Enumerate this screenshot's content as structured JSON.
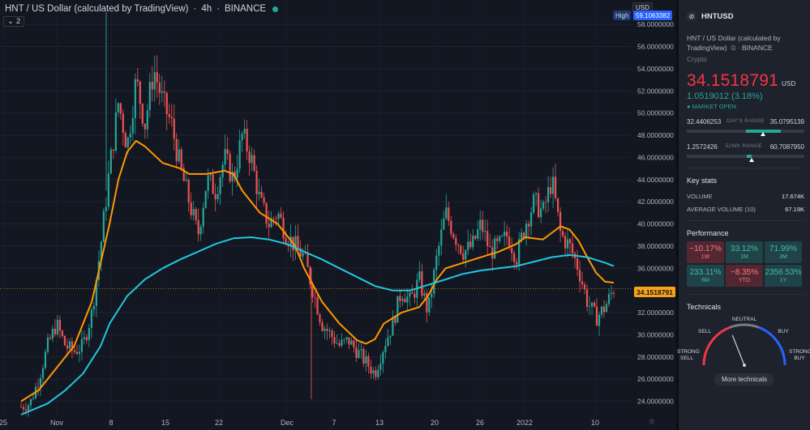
{
  "header": {
    "symbol_title": "HNT / US Dollar (calculated by TradingView)",
    "interval": "4h",
    "exchange": "BINANCE",
    "indicator_count": "2"
  },
  "price_axis": {
    "currency": "USD",
    "high_label": "High",
    "high_value": "59.1063382",
    "last_price": "34.1518791",
    "ticks": [
      "58.0000000",
      "56.0000000",
      "54.0000000",
      "52.0000000",
      "50.0000000",
      "48.0000000",
      "46.0000000",
      "44.0000000",
      "42.0000000",
      "40.0000000",
      "38.0000000",
      "36.0000000",
      "32.0000000",
      "30.0000000",
      "28.0000000",
      "26.0000000",
      "24.0000000"
    ],
    "top_partial": "60"
  },
  "time_axis": {
    "labels": [
      "25",
      "Nov",
      "8",
      "15",
      "22",
      "Dec",
      "7",
      "13",
      "20",
      "26",
      "2022",
      "10"
    ]
  },
  "chart_data": {
    "type": "candlestick",
    "title": "HNT / US Dollar (calculated by TradingView)",
    "ylim": [
      22.8,
      60.2
    ],
    "x_labels": [
      "25",
      "Nov",
      "8",
      "15",
      "22",
      "Dec",
      "7",
      "13",
      "20",
      "26",
      "2022",
      "10"
    ],
    "last_price": 34.1518791,
    "high": 59.1063382,
    "close_path": [
      [
        0,
        23.5
      ],
      [
        1,
        23.8
      ],
      [
        2,
        26
      ],
      [
        3,
        29
      ],
      [
        4,
        31
      ],
      [
        5,
        29
      ],
      [
        6,
        28.5
      ],
      [
        7,
        29
      ],
      [
        8,
        32
      ],
      [
        9,
        38
      ],
      [
        10,
        45
      ],
      [
        11,
        51
      ],
      [
        12,
        47
      ],
      [
        13,
        53
      ],
      [
        14,
        49
      ],
      [
        15,
        54
      ],
      [
        16,
        51
      ],
      [
        17,
        49
      ],
      [
        18,
        45
      ],
      [
        19,
        42
      ],
      [
        20,
        39
      ],
      [
        21,
        44
      ],
      [
        22,
        43
      ],
      [
        23,
        46
      ],
      [
        24,
        44
      ],
      [
        25,
        48
      ],
      [
        26,
        46
      ],
      [
        27,
        42
      ],
      [
        28,
        40
      ],
      [
        29,
        41
      ],
      [
        30,
        39
      ],
      [
        31,
        38
      ],
      [
        32,
        37
      ],
      [
        33,
        34
      ],
      [
        34,
        31
      ],
      [
        35,
        30
      ],
      [
        36,
        29
      ],
      [
        37,
        29.5
      ],
      [
        38,
        28.5
      ],
      [
        39,
        27.5
      ],
      [
        40,
        26.5
      ],
      [
        41,
        29
      ],
      [
        42,
        31
      ],
      [
        43,
        34
      ],
      [
        44,
        33
      ],
      [
        45,
        35
      ],
      [
        46,
        32
      ],
      [
        47,
        37
      ],
      [
        48,
        41
      ],
      [
        49,
        39
      ],
      [
        50,
        37.5
      ],
      [
        51,
        38
      ],
      [
        52,
        40
      ],
      [
        53,
        37.5
      ],
      [
        54,
        38
      ],
      [
        55,
        39
      ],
      [
        56,
        37
      ],
      [
        57,
        40
      ],
      [
        58,
        42
      ],
      [
        59,
        41
      ],
      [
        60,
        44
      ],
      [
        61,
        39
      ],
      [
        62,
        38
      ],
      [
        63,
        36
      ],
      [
        64,
        33
      ],
      [
        65,
        31.5
      ],
      [
        66,
        32.5
      ],
      [
        67,
        34.15
      ]
    ],
    "series": [
      {
        "name": "MA fast",
        "color": "#ff9800",
        "values": [
          [
            0,
            24
          ],
          [
            2,
            25
          ],
          [
            4,
            27
          ],
          [
            6,
            29
          ],
          [
            8,
            33
          ],
          [
            10,
            40
          ],
          [
            11,
            44
          ],
          [
            12,
            46.5
          ],
          [
            13,
            47.5
          ],
          [
            14,
            47
          ],
          [
            16,
            45.5
          ],
          [
            18,
            45
          ],
          [
            19,
            44.5
          ],
          [
            21,
            44.5
          ],
          [
            23,
            44.8
          ],
          [
            24,
            44.5
          ],
          [
            25,
            43
          ],
          [
            27,
            41
          ],
          [
            29,
            40
          ],
          [
            30,
            39
          ],
          [
            31,
            38
          ],
          [
            32,
            36
          ],
          [
            34,
            33
          ],
          [
            36,
            31
          ],
          [
            38,
            29.5
          ],
          [
            39,
            29.2
          ],
          [
            40,
            29.6
          ],
          [
            41,
            31
          ],
          [
            43,
            32
          ],
          [
            45,
            32.5
          ],
          [
            46,
            33.5
          ],
          [
            47,
            35
          ],
          [
            48,
            36
          ],
          [
            50,
            36.5
          ],
          [
            52,
            37
          ],
          [
            54,
            37.5
          ],
          [
            56,
            38.2
          ],
          [
            57,
            38.8
          ],
          [
            59,
            38.6
          ],
          [
            60,
            39.2
          ],
          [
            61,
            39.8
          ],
          [
            62,
            39.5
          ],
          [
            63,
            38.5
          ],
          [
            64,
            37
          ],
          [
            65,
            35.6
          ],
          [
            66,
            34.8
          ],
          [
            67,
            34.7
          ]
        ]
      },
      {
        "name": "MA slow",
        "color": "#22c6e0",
        "values": [
          [
            0,
            22.8
          ],
          [
            3,
            23.8
          ],
          [
            5,
            25
          ],
          [
            7,
            26.5
          ],
          [
            9,
            29
          ],
          [
            10,
            31
          ],
          [
            12,
            33.5
          ],
          [
            14,
            35
          ],
          [
            16,
            36
          ],
          [
            18,
            36.8
          ],
          [
            20,
            37.5
          ],
          [
            22,
            38.2
          ],
          [
            24,
            38.7
          ],
          [
            26,
            38.8
          ],
          [
            28,
            38.6
          ],
          [
            30,
            38.2
          ],
          [
            32,
            37.5
          ],
          [
            34,
            36.8
          ],
          [
            36,
            36
          ],
          [
            38,
            35.2
          ],
          [
            40,
            34.4
          ],
          [
            42,
            34
          ],
          [
            44,
            34
          ],
          [
            46,
            34.5
          ],
          [
            48,
            35
          ],
          [
            50,
            35.5
          ],
          [
            52,
            35.8
          ],
          [
            54,
            36
          ],
          [
            56,
            36.2
          ],
          [
            58,
            36.6
          ],
          [
            60,
            37
          ],
          [
            62,
            37.2
          ],
          [
            64,
            37
          ],
          [
            66,
            36.5
          ],
          [
            67,
            36.2
          ]
        ]
      }
    ],
    "grid": true
  },
  "sidebar": {
    "symbol": "HNTUSD",
    "full_name": "HNT / US Dollar (calculated by TradingView)",
    "exchange": "BINANCE",
    "category": "Crypto",
    "price": "34.1518791",
    "price_currency": "USD",
    "change": "1.0519012 (3.18%)",
    "market_status": "MARKET OPEN",
    "days_range": {
      "low": "32.4406253",
      "label": "DAY'S RANGE",
      "high": "35.0795139",
      "position": 0.65
    },
    "wk52_range": {
      "low": "1.2572426",
      "label": "52WK RANGE",
      "high": "60.7087950",
      "position": 0.55
    },
    "key_stats_title": "Key stats",
    "key_stats": [
      {
        "label": "VOLUME",
        "value": "17.674K"
      },
      {
        "label": "AVERAGE VOLUME (10)",
        "value": "67.19K"
      }
    ],
    "performance_title": "Performance",
    "performance": [
      {
        "value": "−10.17%",
        "period": "1W",
        "sign": "neg"
      },
      {
        "value": "33.12%",
        "period": "1M",
        "sign": "pos"
      },
      {
        "value": "71.99%",
        "period": "3M",
        "sign": "pos"
      },
      {
        "value": "233.11%",
        "period": "6M",
        "sign": "pos"
      },
      {
        "value": "−8.35%",
        "period": "YTD",
        "sign": "neg"
      },
      {
        "value": "2356.53%",
        "period": "1Y",
        "sign": "pos"
      }
    ],
    "technicals_title": "Technicals",
    "gauge": {
      "strong_sell": "STRONG SELL",
      "sell": "SELL",
      "neutral": "NEUTRAL",
      "buy": "BUY",
      "strong_buy": "STRONG BUY",
      "reading": 0.38
    },
    "more_button": "More technicals"
  }
}
